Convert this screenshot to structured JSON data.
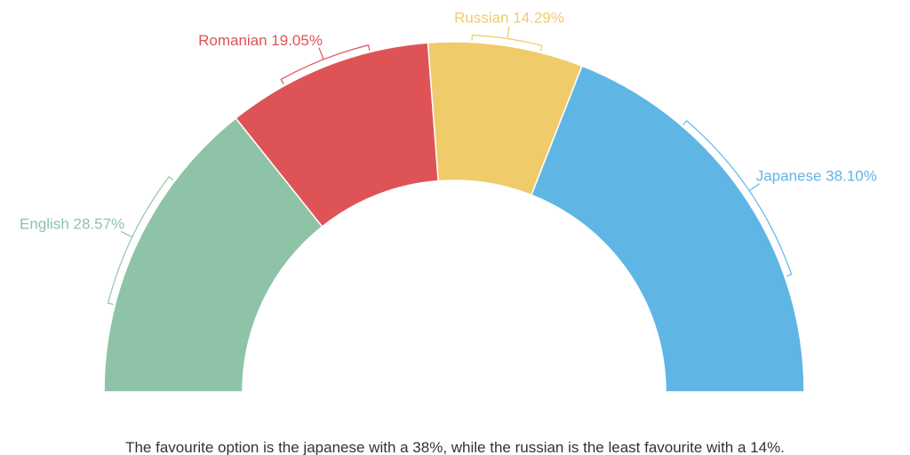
{
  "chart_data": {
    "type": "pie",
    "variant": "semi-donut",
    "categories": [
      "English",
      "Romanian",
      "Russian",
      "Japanese"
    ],
    "values": [
      28.57,
      19.05,
      14.29,
      38.1
    ],
    "labels": [
      "English 28.57%",
      "Romanian 19.05%",
      "Russian 14.29%",
      "Japanese 38.10%"
    ],
    "colors": [
      "#8fc3a7",
      "#de5356",
      "#efcb6a",
      "#5fb6e5"
    ],
    "legend": "none"
  },
  "caption": "The favourite option is the japanese with a 38%, while the russian is the least favourite with a 14%."
}
